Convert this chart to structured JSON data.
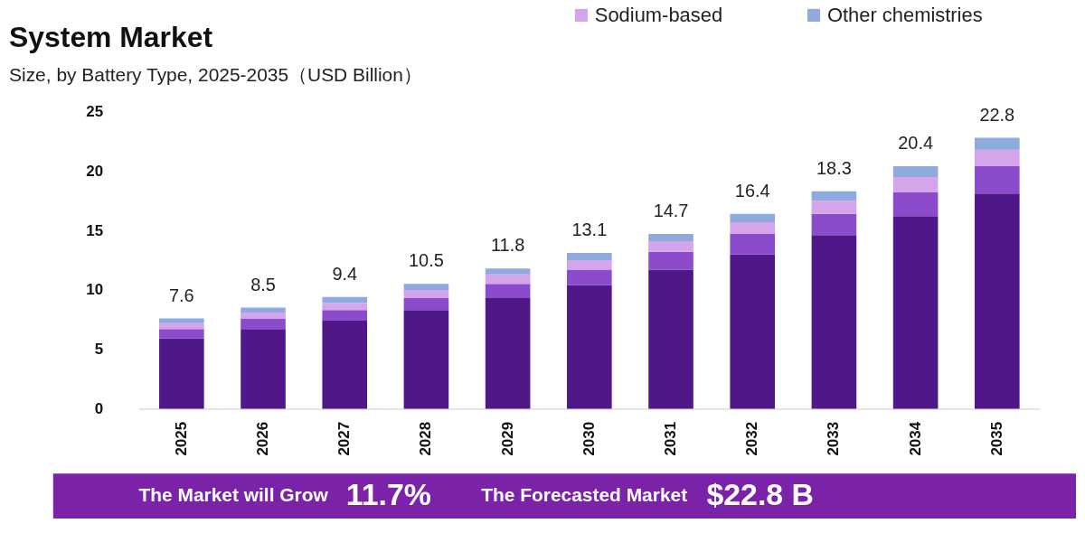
{
  "chart_data": {
    "type": "bar",
    "title": "System Market",
    "subtitle": "Size, by Battery Type, 2025-2035（USD Billion）",
    "categories": [
      "2025",
      "2026",
      "2027",
      "2028",
      "2029",
      "2030",
      "2031",
      "2032",
      "2033",
      "2034",
      "2035"
    ],
    "stacked": true,
    "series": [
      {
        "color": "#4f1787",
        "values": [
          5.9,
          6.7,
          7.4,
          8.3,
          9.3,
          10.4,
          11.7,
          13.0,
          14.6,
          16.2,
          18.1
        ]
      },
      {
        "color": "#8b4bcc",
        "values": [
          0.8,
          0.9,
          0.9,
          1.0,
          1.2,
          1.3,
          1.5,
          1.7,
          1.8,
          2.0,
          2.3
        ]
      },
      {
        "name": "Sodium-based",
        "color": "#d4a5ea",
        "values": [
          0.5,
          0.5,
          0.6,
          0.7,
          0.8,
          0.8,
          0.9,
          1.0,
          1.1,
          1.3,
          1.4
        ]
      },
      {
        "name": "Other chemistries",
        "color": "#8eaadf",
        "values": [
          0.4,
          0.4,
          0.5,
          0.5,
          0.5,
          0.6,
          0.6,
          0.7,
          0.8,
          0.9,
          1.0
        ]
      }
    ],
    "totals": [
      "7.6",
      "8.5",
      "9.4",
      "10.5",
      "11.8",
      "13.1",
      "14.7",
      "16.4",
      "18.3",
      "20.4",
      "22.8"
    ],
    "ylim": [
      0,
      25
    ],
    "yticks": [
      0,
      5,
      10,
      15,
      20,
      25
    ],
    "grid": false,
    "legend": "top right",
    "annotations": [
      "The Market will Grow",
      "11.7%",
      "The Forecasted Market",
      "$22.8 B"
    ]
  }
}
